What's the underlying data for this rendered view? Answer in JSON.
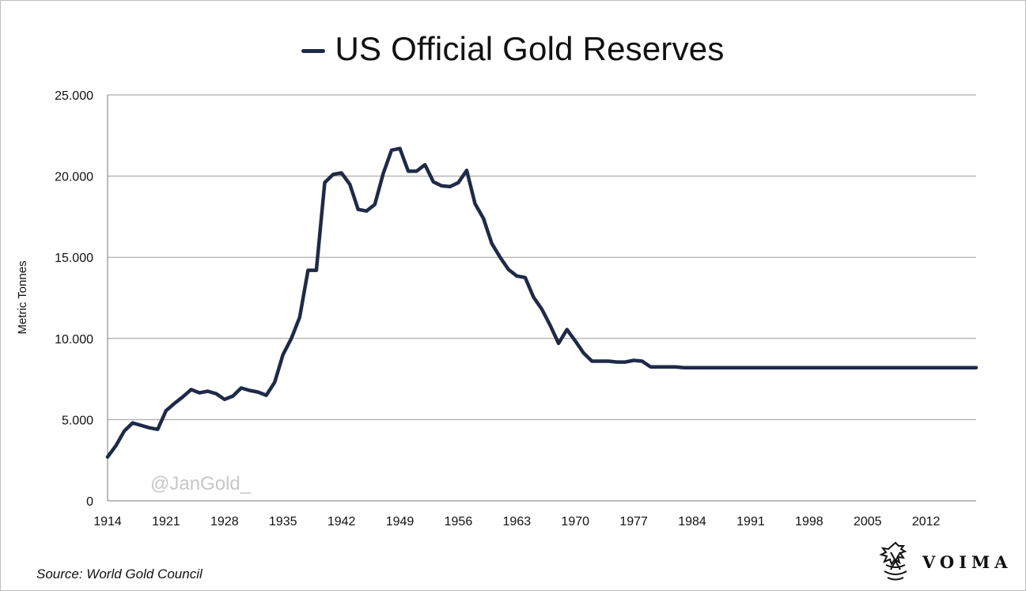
{
  "chart_data": {
    "type": "line",
    "title": "US Official Gold Reserves",
    "ylabel": "Metric Tonnes",
    "xlabel": "",
    "ylim": [
      0,
      25000
    ],
    "xlim": [
      1914,
      2018
    ],
    "y_ticks": [
      0,
      5000,
      10000,
      15000,
      20000,
      25000
    ],
    "y_tick_labels": [
      "0",
      "5.000",
      "10.000",
      "15.000",
      "20.000",
      "25.000"
    ],
    "x_ticks": [
      1914,
      1921,
      1928,
      1935,
      1942,
      1949,
      1956,
      1963,
      1970,
      1977,
      1984,
      1991,
      1998,
      2005,
      2012
    ],
    "x_tick_labels": [
      "1914",
      "1921",
      "1928",
      "1935",
      "1942",
      "1949",
      "1956",
      "1963",
      "1970",
      "1977",
      "1984",
      "1991",
      "1998",
      "2005",
      "2012"
    ],
    "grid": true,
    "legend": "top-center (in title)",
    "series": [
      {
        "name": "US Official Gold Reserves",
        "color": "#1e2b47",
        "x": [
          1914,
          1915,
          1916,
          1917,
          1918,
          1919,
          1920,
          1921,
          1922,
          1923,
          1924,
          1925,
          1926,
          1927,
          1928,
          1929,
          1930,
          1931,
          1932,
          1933,
          1934,
          1935,
          1936,
          1937,
          1938,
          1939,
          1940,
          1941,
          1942,
          1943,
          1944,
          1945,
          1946,
          1947,
          1948,
          1949,
          1950,
          1951,
          1952,
          1953,
          1954,
          1955,
          1956,
          1957,
          1958,
          1959,
          1960,
          1961,
          1962,
          1963,
          1964,
          1965,
          1966,
          1967,
          1968,
          1969,
          1970,
          1971,
          1972,
          1973,
          1974,
          1975,
          1976,
          1977,
          1978,
          1979,
          1980,
          1981,
          1982,
          1983,
          1984,
          1985,
          1986,
          1987,
          1988,
          1989,
          1990,
          1991,
          1992,
          1993,
          1994,
          1995,
          1996,
          1997,
          1998,
          1999,
          2000,
          2001,
          2002,
          2003,
          2004,
          2005,
          2006,
          2007,
          2008,
          2009,
          2010,
          2011,
          2012,
          2013,
          2014,
          2015,
          2016,
          2017,
          2018
        ],
        "y": [
          2700,
          3400,
          4300,
          4800,
          4650,
          4500,
          4400,
          5550,
          6000,
          6400,
          6850,
          6650,
          6750,
          6600,
          6250,
          6450,
          6950,
          6800,
          6700,
          6500,
          7300,
          9000,
          10000,
          11300,
          14200,
          14200,
          19600,
          20100,
          20200,
          19500,
          17950,
          17850,
          18250,
          20150,
          21600,
          21700,
          20300,
          20300,
          20700,
          19650,
          19400,
          19350,
          19600,
          20350,
          18300,
          17400,
          15850,
          15000,
          14250,
          13850,
          13750,
          12550,
          11800,
          10800,
          9700,
          10550,
          9850,
          9100,
          8600,
          8600,
          8600,
          8550,
          8550,
          8650,
          8600,
          8250,
          8250,
          8250,
          8250,
          8200,
          8200,
          8200,
          8200,
          8200,
          8200,
          8200,
          8200,
          8200,
          8200,
          8200,
          8200,
          8200,
          8200,
          8200,
          8200,
          8200,
          8200,
          8200,
          8200,
          8200,
          8200,
          8200,
          8200,
          8200,
          8200,
          8200,
          8200,
          8200,
          8200,
          8200,
          8200,
          8200,
          8200,
          8200,
          8200
        ]
      }
    ]
  },
  "watermark": "@JanGold_",
  "source": "Source: World Gold Council",
  "logo": {
    "wordmark": "VOIMA",
    "icon": "griffin-crest-icon"
  }
}
